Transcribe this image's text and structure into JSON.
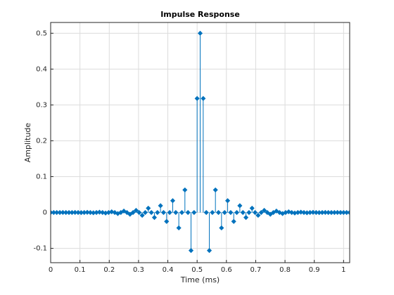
{
  "chart_data": {
    "type": "stem",
    "title": "Impulse Response",
    "x_label": "Time (ms)",
    "y_label": "Amplitude",
    "x": [
      0,
      0.0104,
      0.0208,
      0.0313,
      0.0417,
      0.0521,
      0.0625,
      0.0729,
      0.0833,
      0.0938,
      0.1042,
      0.1146,
      0.125,
      0.1354,
      0.1458,
      0.1563,
      0.1667,
      0.1771,
      0.1875,
      0.1979,
      0.2083,
      0.2188,
      0.2292,
      0.2396,
      0.25,
      0.2604,
      0.2708,
      0.2813,
      0.2917,
      0.3021,
      0.3125,
      0.3229,
      0.3333,
      0.3438,
      0.3542,
      0.3646,
      0.375,
      0.3854,
      0.3958,
      0.4063,
      0.4167,
      0.4271,
      0.4375,
      0.4479,
      0.4583,
      0.4688,
      0.4792,
      0.4896,
      0.5,
      0.5104,
      0.5208,
      0.5313,
      0.5417,
      0.5521,
      0.5625,
      0.5729,
      0.5833,
      0.5938,
      0.6042,
      0.6146,
      0.625,
      0.6354,
      0.6458,
      0.6563,
      0.6667,
      0.6771,
      0.6875,
      0.6979,
      0.7083,
      0.7188,
      0.7292,
      0.7396,
      0.75,
      0.7604,
      0.7708,
      0.7813,
      0.7917,
      0.8021,
      0.8125,
      0.8229,
      0.8333,
      0.8438,
      0.8542,
      0.8646,
      0.875,
      0.8854,
      0.8958,
      0.9063,
      0.9167,
      0.9271,
      0.9375,
      0.9479,
      0.9583,
      0.9688,
      0.9792,
      0.9896,
      1,
      1.0104,
      1.0208
    ],
    "values": [
      0,
      0,
      0,
      0,
      0.0001,
      0,
      -0.0001,
      0,
      0.0002,
      0,
      -0.0003,
      0,
      0.0005,
      0,
      -0.0008,
      0,
      0.001,
      0,
      -0.0015,
      0,
      0.002,
      0,
      -0.003,
      0,
      0.004,
      0,
      -0.005,
      0,
      0.006,
      0,
      -0.008,
      0,
      0.012,
      0,
      -0.014,
      0,
      0.019,
      0,
      -0.025,
      0,
      0.033,
      0,
      -0.043,
      0,
      0.063,
      0,
      -0.106,
      0,
      0.318,
      0.5,
      0.318,
      0,
      -0.106,
      0,
      0.063,
      0,
      -0.043,
      0,
      0.033,
      0,
      -0.025,
      0,
      0.019,
      0,
      -0.014,
      0,
      0.012,
      0,
      -0.008,
      0,
      0.006,
      0,
      -0.005,
      0,
      0.004,
      0,
      -0.003,
      0,
      0.002,
      0,
      -0.0015,
      0,
      0.001,
      0,
      -0.0008,
      0,
      0.0005,
      0,
      -0.0003,
      0,
      0.0002,
      0,
      -0.0001,
      0,
      0.0001,
      0,
      0,
      0,
      0
    ],
    "color": "#0072bd",
    "xlim": [
      0,
      1.0208
    ],
    "ylim": [
      -0.14,
      0.53
    ],
    "xticks": [
      0,
      0.1,
      0.2,
      0.3,
      0.4,
      0.5,
      0.6,
      0.7,
      0.8,
      0.9,
      1
    ],
    "yticks": [
      -0.1,
      0,
      0.1,
      0.2,
      0.3,
      0.4,
      0.5
    ],
    "grid": true
  }
}
